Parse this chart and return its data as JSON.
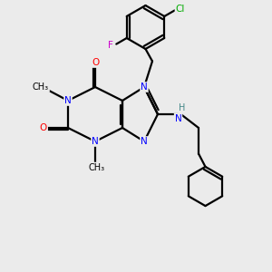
{
  "bg_color": "#ebebeb",
  "atom_colors": {
    "N": "#0000ff",
    "O": "#ff0000",
    "F": "#cc00cc",
    "Cl": "#00aa00",
    "C": "#000000",
    "H": "#448888"
  },
  "figsize": [
    3.0,
    3.0
  ],
  "dpi": 100
}
